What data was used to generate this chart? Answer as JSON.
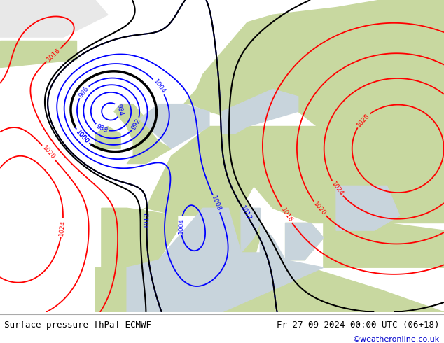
{
  "title_left": "Surface pressure [hPa] ECMWF",
  "title_right": "Fr 27-09-2024 00:00 UTC (06+18)",
  "copyright": "©weatheronline.co.uk",
  "fig_width": 6.34,
  "fig_height": 4.9,
  "dpi": 100,
  "sea_color": "#c8d4dc",
  "land_color": "#c8d8a0",
  "glacier_color": "#e8e8e8",
  "footer_bg": "#f0f0f0",
  "blue_color": "blue",
  "red_color": "red",
  "black_color": "black"
}
